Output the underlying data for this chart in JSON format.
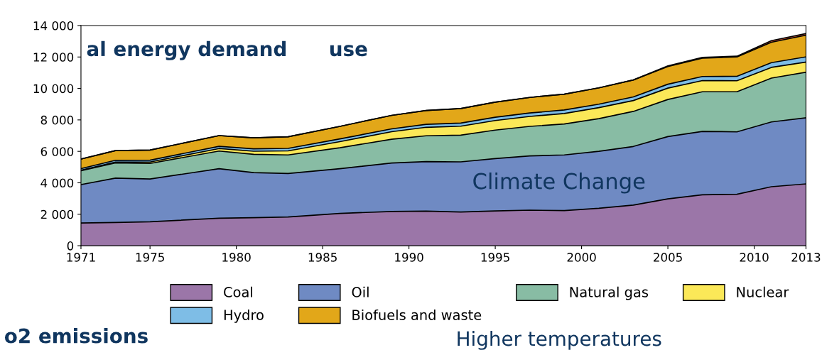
{
  "chart_data": {
    "type": "area",
    "stacked": true,
    "x": [
      1971,
      1973,
      1975,
      1979,
      1981,
      1983,
      1986,
      1989,
      1991,
      1993,
      1995,
      1997,
      1999,
      2001,
      2003,
      2005,
      2007,
      2009,
      2011,
      2013
    ],
    "series": [
      {
        "name": "Coal",
        "color": "#9b76a8",
        "values": [
          1440,
          1480,
          1520,
          1750,
          1780,
          1830,
          2050,
          2180,
          2200,
          2140,
          2210,
          2260,
          2230,
          2380,
          2580,
          2980,
          3240,
          3270,
          3750,
          3930
        ]
      },
      {
        "name": "Oil",
        "color": "#6f8ac3",
        "values": [
          2440,
          2820,
          2720,
          3150,
          2870,
          2760,
          2850,
          3080,
          3150,
          3190,
          3330,
          3450,
          3540,
          3620,
          3730,
          3960,
          4030,
          3970,
          4120,
          4200
        ]
      },
      {
        "name": "Natural gas",
        "color": "#88bca4",
        "values": [
          890,
          970,
          990,
          1120,
          1160,
          1180,
          1330,
          1510,
          1640,
          1700,
          1810,
          1880,
          1970,
          2080,
          2230,
          2360,
          2520,
          2550,
          2790,
          2900
        ]
      },
      {
        "name": "Nuclear",
        "color": "#fbe858",
        "values": [
          30,
          50,
          90,
          160,
          200,
          260,
          390,
          480,
          540,
          570,
          610,
          630,
          670,
          700,
          690,
          720,
          710,
          700,
          680,
          650
        ]
      },
      {
        "name": "Hydro",
        "color": "#7ebde6",
        "values": [
          100,
          110,
          120,
          140,
          150,
          160,
          170,
          180,
          190,
          200,
          210,
          220,
          220,
          220,
          230,
          250,
          260,
          280,
          300,
          330
        ]
      },
      {
        "name": "Biofuels and waste",
        "color": "#e2a719",
        "values": [
          610,
          620,
          640,
          680,
          700,
          740,
          800,
          860,
          880,
          920,
          960,
          990,
          1010,
          1040,
          1080,
          1120,
          1170,
          1230,
          1300,
          1380
        ]
      },
      {
        "color": "#e05a3a",
        "values": [
          0,
          0,
          0,
          0,
          0,
          0,
          0,
          0,
          0,
          0,
          0,
          0,
          0,
          0,
          0,
          50,
          50,
          50,
          100,
          100
        ]
      }
    ],
    "xlim": [
      1971,
      2013
    ],
    "xticks": [
      1971,
      1975,
      1980,
      1985,
      1990,
      1995,
      2000,
      2005,
      2010,
      2013
    ],
    "ylim": [
      0,
      14000
    ],
    "yticks": [
      0,
      {
        "value": 2000,
        "label": "2 000"
      },
      {
        "value": 4000,
        "label": "4 000"
      },
      {
        "value": 6000,
        "label": "6 000"
      },
      {
        "value": 8000,
        "label": "8 000"
      },
      {
        "value": 10000,
        "label": "10 000"
      },
      {
        "value": 12000,
        "label": "12 000"
      },
      {
        "value": 14000,
        "label": "14 000"
      }
    ],
    "legend": "bottom",
    "grid": false,
    "annotations": [
      "al energy demand",
      "use",
      "o2 emissions",
      "Climate Change",
      "Higher temperatures"
    ]
  }
}
